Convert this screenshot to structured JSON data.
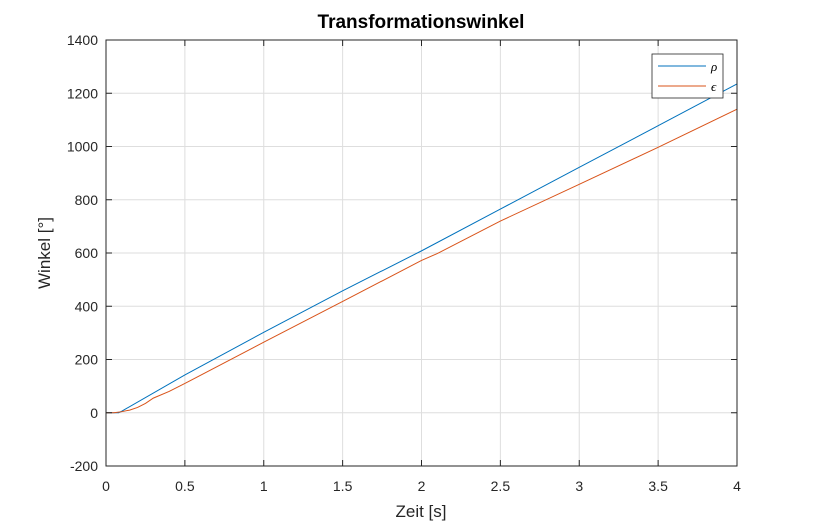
{
  "chart_data": {
    "type": "line",
    "title": "Transformationswinkel",
    "xlabel": "Zeit [s]",
    "ylabel": "Winkel [°]",
    "xlim": [
      0,
      4
    ],
    "ylim": [
      -200,
      1400
    ],
    "xticks": [
      0,
      0.5,
      1,
      1.5,
      2,
      2.5,
      3,
      3.5,
      4
    ],
    "xtick_labels": [
      "0",
      "0.5",
      "1",
      "1.5",
      "2",
      "2.5",
      "3",
      "3.5",
      "4"
    ],
    "yticks": [
      -200,
      0,
      200,
      400,
      600,
      800,
      1000,
      1200,
      1400
    ],
    "ytick_labels": [
      "-200",
      "0",
      "200",
      "400",
      "600",
      "800",
      "1000",
      "1200",
      "1400"
    ],
    "grid": true,
    "legend_position": "top-right",
    "series": [
      {
        "name": "ρ",
        "color": "#0072BD",
        "x": [
          0,
          0.08,
          0.1,
          0.5,
          1,
          1.5,
          2,
          2.5,
          3,
          3.5,
          4
        ],
        "y": [
          0,
          0,
          6,
          142,
          302,
          458,
          608,
          765,
          922,
          1078,
          1235
        ]
      },
      {
        "name": "ϵ",
        "color": "#D95319",
        "x": [
          0,
          0.05,
          0.1,
          0.15,
          0.2,
          0.25,
          0.3,
          0.4,
          0.5,
          1,
          1.5,
          2,
          2.1,
          2.5,
          3,
          3.5,
          4
        ],
        "y": [
          0,
          0,
          4,
          10,
          20,
          35,
          55,
          80,
          110,
          265,
          418,
          572,
          598,
          720,
          858,
          997,
          1140
        ]
      }
    ]
  }
}
